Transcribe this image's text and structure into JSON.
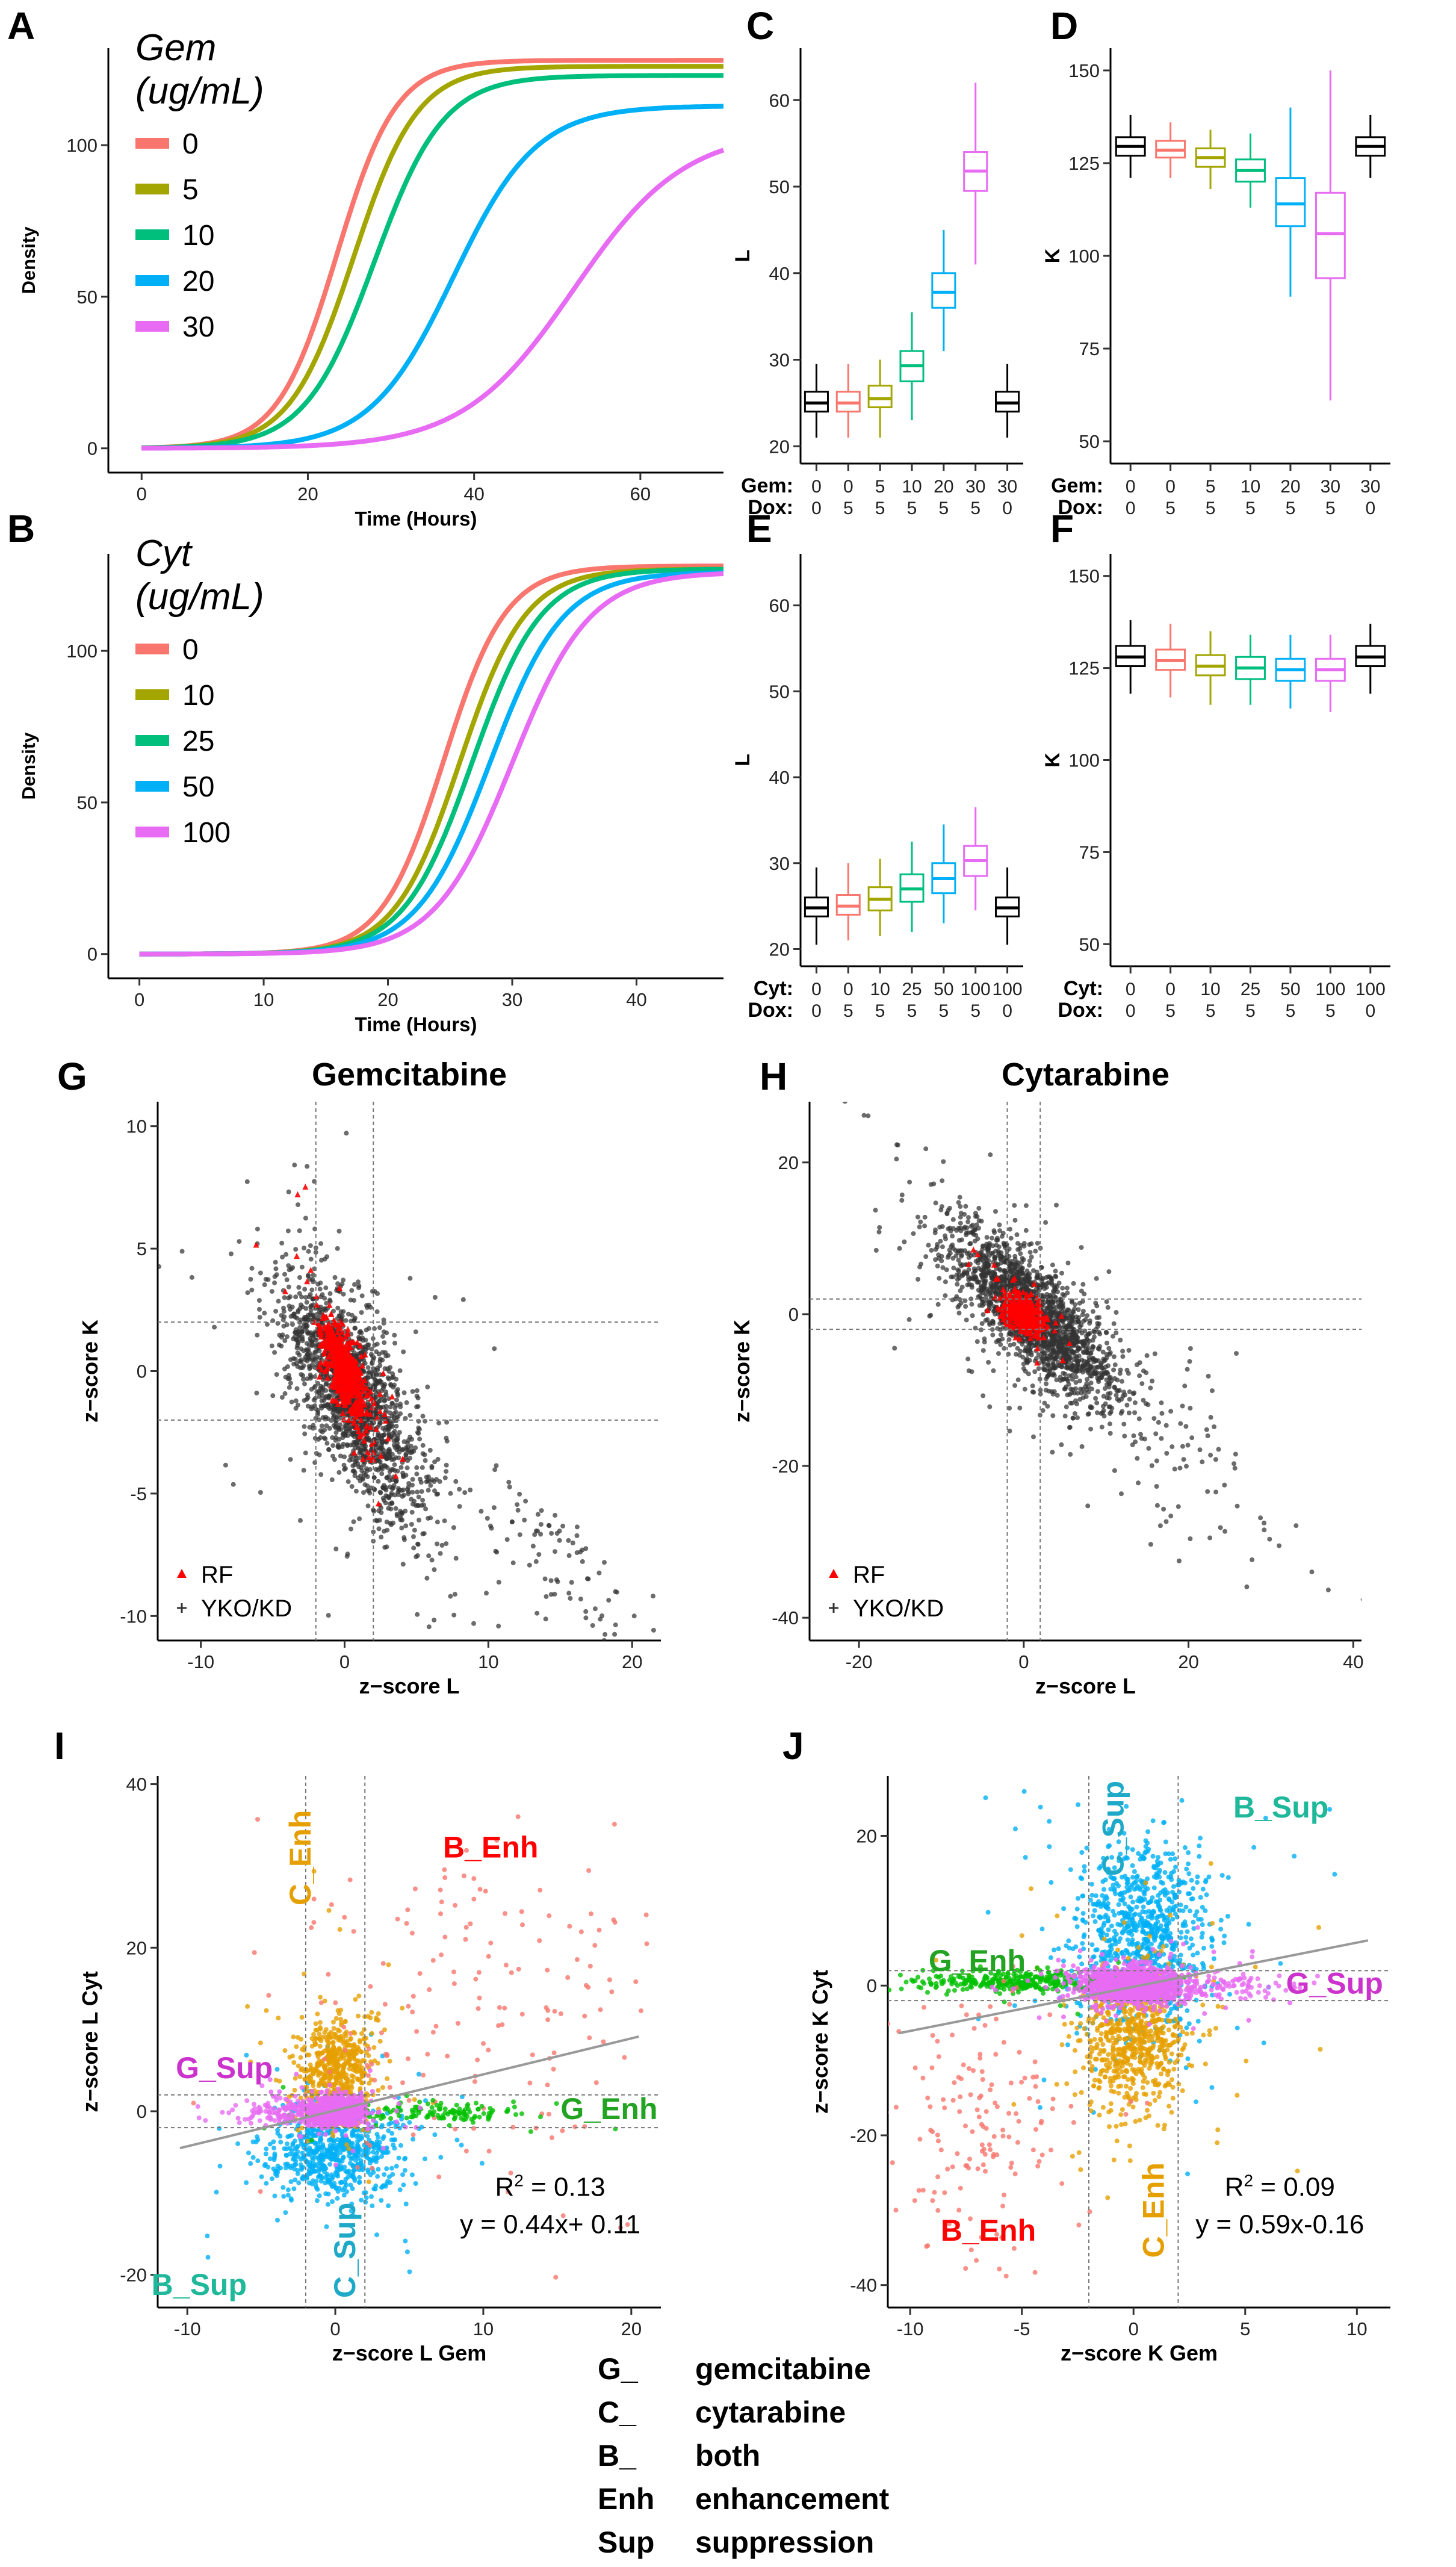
{
  "figure": {
    "description": "Multi-panel figure A-J: growth curves, parameter boxplots, z-score scatter plots"
  },
  "chart_data": [
    {
      "panel": "A",
      "type": "line",
      "xlabel": "Time (Hours)",
      "ylabel": "Density",
      "xlim": [
        -4,
        70
      ],
      "ylim": [
        -8,
        132
      ],
      "xticks": [
        0,
        20,
        40,
        60
      ],
      "yticks": [
        0,
        50,
        100
      ],
      "legend_title": [
        "Gem",
        "(ug/mL)"
      ],
      "series": [
        {
          "name": "0",
          "color": "#F8766D",
          "K": 128,
          "r": 0.28,
          "t0": 23.5
        },
        {
          "name": "5",
          "color": "#A3A500",
          "K": 126,
          "r": 0.26,
          "t0": 25.5
        },
        {
          "name": "10",
          "color": "#00BF7D",
          "K": 123,
          "r": 0.24,
          "t0": 28
        },
        {
          "name": "20",
          "color": "#00B0F6",
          "K": 113,
          "r": 0.2,
          "t0": 37.5
        },
        {
          "name": "30",
          "color": "#E76BF3",
          "K": 105,
          "r": 0.15,
          "t0": 52
        }
      ]
    },
    {
      "panel": "B",
      "type": "line",
      "xlabel": "Time (Hours)",
      "ylabel": "Density",
      "xlim": [
        -2.5,
        47
      ],
      "ylim": [
        -8,
        132
      ],
      "xticks": [
        0,
        10,
        20,
        30,
        40
      ],
      "yticks": [
        0,
        50,
        100
      ],
      "legend_title": [
        "Cyt",
        "(ug/mL)"
      ],
      "series": [
        {
          "name": "0",
          "color": "#F8766D",
          "K": 128,
          "r": 0.4,
          "t0": 24.5
        },
        {
          "name": "10",
          "color": "#A3A500",
          "K": 127,
          "r": 0.38,
          "t0": 25.8
        },
        {
          "name": "25",
          "color": "#00BF7D",
          "K": 127,
          "r": 0.36,
          "t0": 26.8
        },
        {
          "name": "50",
          "color": "#00B0F6",
          "K": 126,
          "r": 0.34,
          "t0": 28.2
        },
        {
          "name": "100",
          "color": "#E76BF3",
          "K": 126,
          "r": 0.32,
          "t0": 30
        }
      ]
    },
    {
      "panel": "C",
      "type": "box",
      "ylabel": "L",
      "ylim": [
        18,
        66
      ],
      "yticks": [
        20,
        30,
        40,
        50,
        60
      ],
      "xrows": [
        {
          "label": "Gem:",
          "values": [
            "0",
            "0",
            "5",
            "10",
            "20",
            "30",
            "30"
          ]
        },
        {
          "label": "Dox:",
          "values": [
            "0",
            "5",
            "5",
            "5",
            "5",
            "5",
            "0"
          ]
        }
      ],
      "boxes": [
        {
          "color": "#000000",
          "whislo": 21,
          "q1": 24,
          "med": 25,
          "q3": 26.3,
          "whishi": 29.5
        },
        {
          "color": "#F8766D",
          "whislo": 21,
          "q1": 24,
          "med": 25,
          "q3": 26.3,
          "whishi": 29.5
        },
        {
          "color": "#A3A500",
          "whislo": 21,
          "q1": 24.5,
          "med": 25.5,
          "q3": 27,
          "whishi": 30
        },
        {
          "color": "#00BF7D",
          "whislo": 23,
          "q1": 27.5,
          "med": 29.3,
          "q3": 31,
          "whishi": 35.5
        },
        {
          "color": "#00B0F6",
          "whislo": 31,
          "q1": 36,
          "med": 37.8,
          "q3": 40,
          "whishi": 45
        },
        {
          "color": "#E76BF3",
          "whislo": 41,
          "q1": 49.5,
          "med": 51.8,
          "q3": 54,
          "whishi": 62
        },
        {
          "color": "#000000",
          "whislo": 21,
          "q1": 24,
          "med": 25,
          "q3": 26.3,
          "whishi": 29.5
        }
      ]
    },
    {
      "panel": "D",
      "type": "box",
      "ylabel": "K",
      "ylim": [
        44,
        156
      ],
      "yticks": [
        50,
        75,
        100,
        125,
        150
      ],
      "xrows": [
        {
          "label": "Gem:",
          "values": [
            "0",
            "0",
            "5",
            "10",
            "20",
            "30",
            "30"
          ]
        },
        {
          "label": "Dox:",
          "values": [
            "0",
            "5",
            "5",
            "5",
            "5",
            "5",
            "0"
          ]
        }
      ],
      "boxes": [
        {
          "color": "#000000",
          "whislo": 121,
          "q1": 127,
          "med": 129.5,
          "q3": 132,
          "whishi": 138
        },
        {
          "color": "#F8766D",
          "whislo": 121,
          "q1": 126.5,
          "med": 128.5,
          "q3": 131,
          "whishi": 136
        },
        {
          "color": "#A3A500",
          "whislo": 118,
          "q1": 124,
          "med": 126.5,
          "q3": 129,
          "whishi": 134
        },
        {
          "color": "#00BF7D",
          "whislo": 113,
          "q1": 120,
          "med": 123,
          "q3": 126,
          "whishi": 133
        },
        {
          "color": "#00B0F6",
          "whislo": 89,
          "q1": 108,
          "med": 114,
          "q3": 121,
          "whishi": 140
        },
        {
          "color": "#E76BF3",
          "whislo": 61,
          "q1": 94,
          "med": 106,
          "q3": 117,
          "whishi": 150
        },
        {
          "color": "#000000",
          "whislo": 121,
          "q1": 127,
          "med": 129.5,
          "q3": 132,
          "whishi": 138
        }
      ]
    },
    {
      "panel": "E",
      "type": "box",
      "ylabel": "L",
      "ylim": [
        18,
        66
      ],
      "yticks": [
        20,
        30,
        40,
        50,
        60
      ],
      "xrows": [
        {
          "label": "Cyt:",
          "values": [
            "0",
            "0",
            "10",
            "25",
            "50",
            "100",
            "100"
          ]
        },
        {
          "label": "Dox:",
          "values": [
            "0",
            "5",
            "5",
            "5",
            "5",
            "5",
            "0"
          ]
        }
      ],
      "boxes": [
        {
          "color": "#000000",
          "whislo": 20.5,
          "q1": 23.8,
          "med": 24.8,
          "q3": 26,
          "whishi": 29.5
        },
        {
          "color": "#F8766D",
          "whislo": 21,
          "q1": 24,
          "med": 25,
          "q3": 26.3,
          "whishi": 30
        },
        {
          "color": "#A3A500",
          "whislo": 21.5,
          "q1": 24.5,
          "med": 25.8,
          "q3": 27.2,
          "whishi": 30.5
        },
        {
          "color": "#00BF7D",
          "whislo": 22,
          "q1": 25.5,
          "med": 27,
          "q3": 28.7,
          "whishi": 32.5
        },
        {
          "color": "#00B0F6",
          "whislo": 23,
          "q1": 26.5,
          "med": 28.2,
          "q3": 30,
          "whishi": 34.5
        },
        {
          "color": "#E76BF3",
          "whislo": 24.5,
          "q1": 28.5,
          "med": 30.3,
          "q3": 32,
          "whishi": 36.5
        },
        {
          "color": "#000000",
          "whislo": 20.5,
          "q1": 23.8,
          "med": 24.8,
          "q3": 26,
          "whishi": 29.5
        }
      ]
    },
    {
      "panel": "F",
      "type": "box",
      "ylabel": "K",
      "ylim": [
        44,
        156
      ],
      "yticks": [
        50,
        75,
        100,
        125,
        150
      ],
      "xrows": [
        {
          "label": "Cyt:",
          "values": [
            "0",
            "0",
            "10",
            "25",
            "50",
            "100",
            "100"
          ]
        },
        {
          "label": "Dox:",
          "values": [
            "0",
            "5",
            "5",
            "5",
            "5",
            "5",
            "0"
          ]
        }
      ],
      "boxes": [
        {
          "color": "#000000",
          "whislo": 118,
          "q1": 125.5,
          "med": 128,
          "q3": 131,
          "whishi": 138
        },
        {
          "color": "#F8766D",
          "whislo": 117,
          "q1": 124.5,
          "med": 127,
          "q3": 130,
          "whishi": 137
        },
        {
          "color": "#A3A500",
          "whislo": 115,
          "q1": 123,
          "med": 125.5,
          "q3": 128.5,
          "whishi": 135
        },
        {
          "color": "#00BF7D",
          "whislo": 115,
          "q1": 122,
          "med": 125,
          "q3": 128,
          "whishi": 134
        },
        {
          "color": "#00B0F6",
          "whislo": 114,
          "q1": 121.5,
          "med": 124.5,
          "q3": 127.5,
          "whishi": 134
        },
        {
          "color": "#E76BF3",
          "whislo": 113,
          "q1": 121.5,
          "med": 124.5,
          "q3": 127.5,
          "whishi": 134
        },
        {
          "color": "#000000",
          "whislo": 118,
          "q1": 125.5,
          "med": 128,
          "q3": 131,
          "whishi": 137
        }
      ]
    },
    {
      "panel": "G",
      "type": "scatter",
      "title": "Gemcitabine",
      "xlabel": "z−score L",
      "ylabel": "z−score K",
      "xlim": [
        -13,
        22
      ],
      "ylim": [
        -11,
        11
      ],
      "xticks": [
        -10,
        0,
        10,
        20
      ],
      "yticks": [
        -10,
        -5,
        0,
        5,
        10
      ],
      "vlines": [
        -2,
        2
      ],
      "hlines": [
        -2,
        2
      ],
      "legend": [
        {
          "label": "RF",
          "color": "#FF0000",
          "marker": "triangle"
        },
        {
          "label": "YKO/KD",
          "color": "#333333",
          "marker": "plus"
        }
      ],
      "clouds": [
        {
          "n": 1800,
          "color": "#333333",
          "alpha": 0.72,
          "cx": 0.5,
          "cy": -1,
          "sx": 2.4,
          "sy": 1.8,
          "slope": -0.7
        },
        {
          "n": 90,
          "color": "#333333",
          "alpha": 0.72,
          "cx": 15,
          "cy": -7.8,
          "sx": 3.5,
          "sy": 1.0,
          "slope": -0.45
        },
        {
          "n": 600,
          "color": "#FF0000",
          "alpha": 0.9,
          "cx": 0,
          "cy": 0,
          "sx": 0.8,
          "sy": 0.7,
          "slope": -0.9
        }
      ]
    },
    {
      "panel": "H",
      "type": "scatter",
      "title": "Cytarabine",
      "xlabel": "z−score L",
      "ylabel": "z−score K",
      "xlim": [
        -26,
        41
      ],
      "ylim": [
        -43,
        28
      ],
      "xticks": [
        -20,
        0,
        20,
        40
      ],
      "yticks": [
        -40,
        -20,
        0,
        20
      ],
      "vlines": [
        -2,
        2
      ],
      "hlines": [
        -2,
        2
      ],
      "legend": [
        {
          "label": "RF",
          "color": "#FF0000",
          "marker": "triangle"
        },
        {
          "label": "YKO/KD",
          "color": "#333333",
          "marker": "plus"
        }
      ],
      "clouds": [
        {
          "n": 1900,
          "color": "#333333",
          "alpha": 0.72,
          "cx": 1,
          "cy": 0,
          "sx": 5,
          "sy": 3.5,
          "slope": -0.9
        },
        {
          "n": 150,
          "color": "#333333",
          "alpha": 0.72,
          "cx": 10,
          "cy": -12,
          "sx": 11,
          "sy": 5,
          "slope": -0.8
        },
        {
          "n": 400,
          "color": "#FF0000",
          "alpha": 0.9,
          "cx": 0,
          "cy": 0,
          "sx": 1.2,
          "sy": 1.2,
          "slope": -0.5
        }
      ]
    },
    {
      "panel": "I",
      "type": "scatter",
      "xlabel": "z−score L Gem",
      "ylabel": "z−score L Cyt",
      "xlim": [
        -12,
        22
      ],
      "ylim": [
        -24,
        41
      ],
      "xticks": [
        -10,
        0,
        10,
        20
      ],
      "yticks": [
        -20,
        0,
        20,
        40
      ],
      "vlines": [
        -2,
        2
      ],
      "hlines": [
        -2,
        2
      ],
      "regression": {
        "slope": 0.44,
        "intercept": 0.11,
        "x0": -10.5,
        "x1": 20.5,
        "color": "#999999"
      },
      "annotation": {
        "r2_prefix": "R",
        "r2_exp": "2",
        "r2_value": " = 0.13",
        "equation": "y = 0.44x+ 0.11"
      },
      "category_labels": [
        {
          "text": "C_Enh",
          "color": "#E69F00",
          "x": -2.2,
          "y": 31,
          "rotate": true
        },
        {
          "text": "B_Enh",
          "color": "#FF0000",
          "x": 10.5,
          "y": 32,
          "rotate": false
        },
        {
          "text": "G_Sup",
          "color": "#CC33CC",
          "x": -7.5,
          "y": 5,
          "rotate": false
        },
        {
          "text": "G_Enh",
          "color": "#22A322",
          "x": 18.5,
          "y": 0,
          "rotate": false
        },
        {
          "text": "B_Sup",
          "color": "#1FB89A",
          "x": -9.2,
          "y": -21.5,
          "rotate": false
        },
        {
          "text": "C_Sup",
          "color": "#1FA9C9",
          "x": 0.8,
          "y": -17,
          "rotate": true
        }
      ],
      "clouds": [
        {
          "n": 700,
          "color": "#00B0F6",
          "alpha": 0.8,
          "cx": 0,
          "cy": -5,
          "sx": 2.2,
          "sy": 2.7
        },
        {
          "n": 550,
          "color": "#E69F00",
          "alpha": 0.8,
          "cx": 0,
          "cy": 5,
          "sx": 1.2,
          "sy": 3.2
        },
        {
          "n": 180,
          "color": "#F8766D",
          "alpha": 0.8,
          "cx": 10,
          "cy": 12,
          "sx": 6,
          "sy": 11
        },
        {
          "n": 150,
          "color": "#00C000",
          "alpha": 0.8,
          "cx": 6,
          "cy": -0.2,
          "sx": 4,
          "sy": 0.6
        },
        {
          "n": 120,
          "color": "#E76BF3",
          "alpha": 0.8,
          "cx": -3.5,
          "cy": 0,
          "sx": 1.5,
          "sy": 0.8
        },
        {
          "n": 1100,
          "color": "#E76BF3",
          "alpha": 0.85,
          "cx": 0,
          "cy": 0,
          "sx": 0.9,
          "sy": 0.8
        }
      ]
    },
    {
      "panel": "J",
      "type": "scatter",
      "xlabel": "z−score K Gem",
      "ylabel": "z−score K Cyt",
      "xlim": [
        -11,
        11.5
      ],
      "ylim": [
        -43,
        28
      ],
      "xticks": [
        -10,
        -5,
        0,
        5,
        10
      ],
      "yticks": [
        -40,
        -20,
        0,
        20
      ],
      "vlines": [
        -2,
        2
      ],
      "hlines": [
        -2,
        2
      ],
      "regression": {
        "slope": 0.59,
        "intercept": -0.16,
        "x0": -10.5,
        "x1": 10.5,
        "color": "#999999"
      },
      "annotation": {
        "r2_prefix": "R",
        "r2_exp": "2",
        "r2_value": " = 0.09",
        "equation": "y = 0.59x-0.16"
      },
      "category_labels": [
        {
          "text": "C_Sup",
          "color": "#1FA9C9",
          "x": -0.8,
          "y": 21,
          "rotate": true
        },
        {
          "text": "B_Sup",
          "color": "#1FB89A",
          "x": 6.6,
          "y": 23.5,
          "rotate": false
        },
        {
          "text": "G_Enh",
          "color": "#22A322",
          "x": -7,
          "y": 3,
          "rotate": false
        },
        {
          "text": "G_Sup",
          "color": "#CC33CC",
          "x": 9,
          "y": 0,
          "rotate": false
        },
        {
          "text": "B_Enh",
          "color": "#FF0000",
          "x": -6.5,
          "y": -33,
          "rotate": false
        },
        {
          "text": "C_Enh",
          "color": "#E69F00",
          "x": 1,
          "y": -30,
          "rotate": true
        }
      ],
      "clouds": [
        {
          "n": 900,
          "color": "#00B0F6",
          "alpha": 0.8,
          "cx": 0.3,
          "cy": 7,
          "sx": 1.5,
          "sy": 6
        },
        {
          "n": 700,
          "color": "#E69F00",
          "alpha": 0.8,
          "cx": 0,
          "cy": -7,
          "sx": 1.2,
          "sy": 5
        },
        {
          "n": 350,
          "color": "#00C000",
          "alpha": 0.8,
          "cx": -5,
          "cy": 0.5,
          "sx": 2.5,
          "sy": 0.7
        },
        {
          "n": 160,
          "color": "#F8766D",
          "alpha": 0.8,
          "cx": -7,
          "cy": -20,
          "sx": 2,
          "sy": 9
        },
        {
          "n": 1300,
          "color": "#E76BF3",
          "alpha": 0.85,
          "cx": 0,
          "cy": 0,
          "sx": 1.1,
          "sy": 1.2
        },
        {
          "n": 80,
          "color": "#E76BF3",
          "alpha": 0.8,
          "cx": 4.5,
          "cy": 0,
          "sx": 1.2,
          "sy": 0.8
        }
      ]
    }
  ],
  "key": [
    {
      "code": "G_",
      "meaning": "gemcitabine"
    },
    {
      "code": "C_",
      "meaning": "cytarabine"
    },
    {
      "code": "B_",
      "meaning": "both"
    },
    {
      "code": "Enh",
      "meaning": "enhancement"
    },
    {
      "code": "Sup",
      "meaning": "suppression"
    }
  ]
}
